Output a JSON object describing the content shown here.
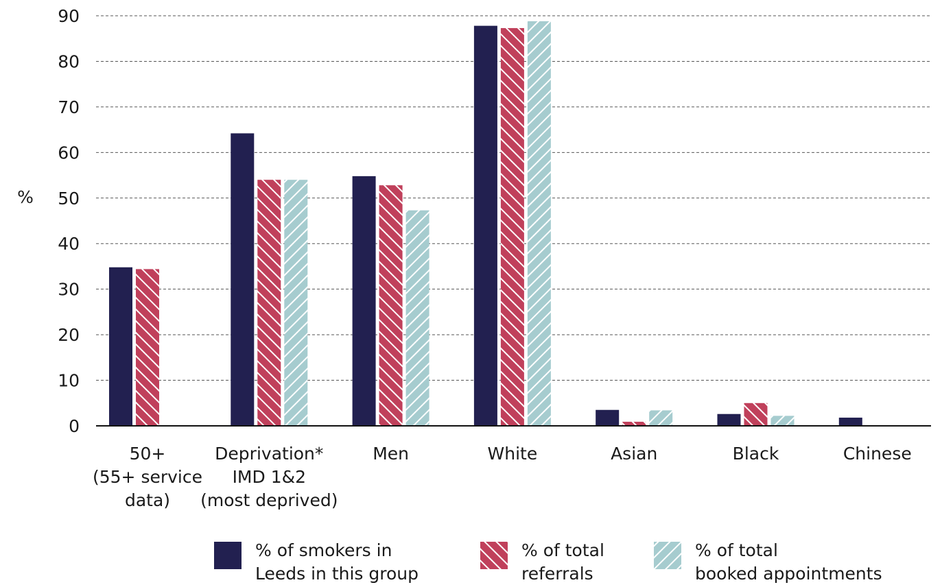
{
  "chart_data": {
    "type": "bar",
    "ylabel": "%",
    "ylim": [
      0,
      90
    ],
    "yticks": [
      0,
      10,
      20,
      30,
      40,
      50,
      60,
      70,
      80,
      90
    ],
    "grid": "horizontal dashed",
    "legend_position": "bottom",
    "categories": [
      [
        "50+",
        "(55+ service",
        "data)"
      ],
      [
        "Deprivation*",
        "IMD 1&2",
        "(most deprived)"
      ],
      [
        "Men"
      ],
      [
        "White"
      ],
      [
        "Asian"
      ],
      [
        "Black"
      ],
      [
        "Chinese"
      ]
    ],
    "series": [
      {
        "name": [
          "% of smokers in",
          "Leeds in this group"
        ],
        "color": "#222050",
        "pattern": "solid",
        "values": [
          34.8,
          64.2,
          54.8,
          87.8,
          3.5,
          2.6,
          1.8
        ]
      },
      {
        "name": [
          "% of total",
          "referrals"
        ],
        "color": "#c0405b",
        "pattern": "hatch-backslash",
        "values": [
          34.4,
          54.0,
          52.8,
          87.3,
          0.9,
          5.0,
          null
        ]
      },
      {
        "name": [
          "% of total",
          "booked appointments"
        ],
        "color": "#a6cccf",
        "pattern": "hatch-slash",
        "values": [
          null,
          54.0,
          47.3,
          88.8,
          3.4,
          2.2,
          null
        ]
      }
    ]
  }
}
